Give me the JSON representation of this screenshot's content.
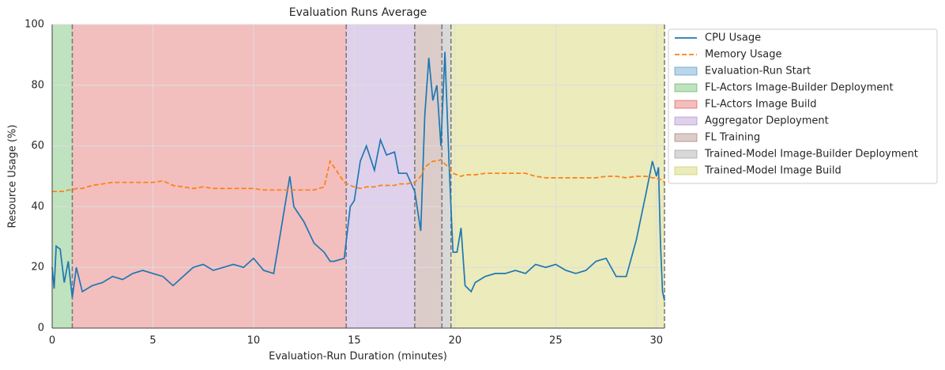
{
  "chart_data": {
    "type": "line",
    "title": "Evaluation Runs Average",
    "x_label": "Evaluation-Run Duration (minutes)",
    "y_label": "Resource Usage (%)",
    "xlim": [
      0,
      30.4
    ],
    "xticks": [
      0,
      5,
      10,
      15,
      20,
      25,
      30
    ],
    "ylim": [
      0,
      100
    ],
    "yticks": [
      0,
      20,
      40,
      60,
      80,
      100
    ],
    "grid": true,
    "legend": "outside right",
    "x": [
      0,
      0.1,
      0.2,
      0.4,
      0.6,
      0.8,
      1,
      1.2,
      1.5,
      2,
      2.5,
      3,
      3.5,
      4,
      4.5,
      5,
      5.5,
      6,
      6.5,
      7,
      7.5,
      8,
      8.5,
      9,
      9.5,
      10,
      10.5,
      11,
      11.3,
      11.6,
      11.8,
      12,
      12.5,
      13,
      13.5,
      13.8,
      14,
      14.5,
      14.8,
      15,
      15.3,
      15.6,
      16,
      16.3,
      16.6,
      17,
      17.2,
      17.6,
      18,
      18.3,
      18.5,
      18.7,
      18.9,
      19.1,
      19.3,
      19.5,
      19.7,
      19.9,
      20.1,
      20.3,
      20.5,
      20.8,
      21,
      21.5,
      22,
      22.5,
      23,
      23.5,
      24,
      24.5,
      25,
      25.5,
      26,
      26.5,
      27,
      27.5,
      28,
      28.5,
      29,
      29.5,
      29.8,
      30,
      30.1,
      30.2,
      30.3,
      30.4
    ],
    "series": [
      {
        "name": "CPU Usage",
        "color": "#1f77b4",
        "dash": false,
        "values": [
          20,
          13,
          27,
          26,
          15,
          22,
          10,
          20,
          12,
          14,
          15,
          17,
          16,
          18,
          19,
          18,
          17,
          14,
          17,
          20,
          21,
          19,
          20,
          21,
          20,
          23,
          19,
          18,
          30,
          42,
          50,
          40,
          35,
          28,
          25,
          22,
          22,
          23,
          40,
          42,
          55,
          60,
          52,
          62,
          57,
          58,
          51,
          51,
          45,
          32,
          70,
          89,
          75,
          80,
          60,
          91,
          55,
          25,
          25,
          33,
          14,
          12,
          15,
          17,
          18,
          18,
          19,
          18,
          21,
          20,
          21,
          19,
          18,
          19,
          22,
          23,
          17,
          17,
          29,
          45,
          55,
          50,
          53,
          28,
          12,
          9
        ]
      },
      {
        "name": "Memory Usage",
        "color": "#ff7f0e",
        "dash": true,
        "values": [
          45,
          45,
          45,
          45,
          45,
          45.5,
          45.5,
          46,
          46,
          47,
          47.5,
          48,
          48,
          48,
          48,
          48,
          48.5,
          47,
          46.5,
          46,
          46.5,
          46,
          46,
          46,
          46,
          46,
          45.5,
          45.5,
          45.5,
          45.5,
          45.5,
          45.5,
          45.5,
          45.5,
          46.5,
          55,
          53,
          48,
          47,
          46.5,
          46,
          46.5,
          46.5,
          47,
          47,
          47,
          47.5,
          47.5,
          48,
          50,
          53,
          54,
          55,
          55,
          55.5,
          54,
          53,
          51,
          50.5,
          50,
          50.5,
          50.5,
          50.5,
          51,
          51,
          51,
          51,
          51,
          50,
          49.5,
          49.5,
          49.5,
          49.5,
          49.5,
          49.5,
          50,
          50,
          49.5,
          50,
          50,
          49.5,
          49.5,
          49,
          49,
          48.5,
          48
        ]
      }
    ],
    "spans": [
      {
        "name": "Evaluation-Run Start",
        "color": "#1f77b4",
        "start": 0,
        "end": 0
      },
      {
        "name": "FL-Actors Image-Builder Deployment",
        "color": "#2ca02c",
        "start": 0,
        "end": 1
      },
      {
        "name": "FL-Actors Image Build",
        "color": "#d62728",
        "start": 1,
        "end": 14.6
      },
      {
        "name": "Aggregator Deployment",
        "color": "#9467bd",
        "start": 14.6,
        "end": 18
      },
      {
        "name": "FL Training",
        "color": "#8c564b",
        "start": 18,
        "end": 19.35
      },
      {
        "name": "Trained-Model Image-Builder Deployment",
        "color": "#7f7f7f",
        "start": 19.35,
        "end": 19.8
      },
      {
        "name": "Trained-Model Image Build",
        "color": "#bcbd22",
        "start": 19.8,
        "end": 30.4
      }
    ]
  }
}
